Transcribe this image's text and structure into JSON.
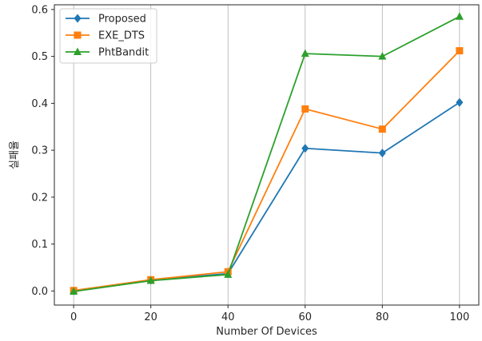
{
  "chart_data": {
    "type": "line",
    "title": "",
    "xlabel": "Number Of Devices",
    "ylabel": "실패율",
    "x": [
      0,
      20,
      40,
      60,
      80,
      100
    ],
    "xticks": [
      "0",
      "20",
      "40",
      "60",
      "80",
      "100"
    ],
    "yticks": [
      "0.0",
      "0.1",
      "0.2",
      "0.3",
      "0.4",
      "0.5",
      "0.6"
    ],
    "xlim": [
      -5,
      105
    ],
    "ylim": [
      -0.03,
      0.61
    ],
    "grid": "vertical",
    "legend": "top-left",
    "series": [
      {
        "name": "Proposed",
        "marker": "diamond",
        "color": "#1f77b4",
        "values": [
          0.0,
          0.023,
          0.037,
          0.304,
          0.294,
          0.402
        ]
      },
      {
        "name": "EXE_DTS",
        "marker": "square",
        "color": "#ff7f0e",
        "values": [
          0.001,
          0.024,
          0.041,
          0.388,
          0.345,
          0.512
        ]
      },
      {
        "name": "PhtBandit",
        "marker": "triangle",
        "color": "#2ca02c",
        "values": [
          -0.001,
          0.022,
          0.035,
          0.506,
          0.5,
          0.585
        ]
      }
    ]
  }
}
